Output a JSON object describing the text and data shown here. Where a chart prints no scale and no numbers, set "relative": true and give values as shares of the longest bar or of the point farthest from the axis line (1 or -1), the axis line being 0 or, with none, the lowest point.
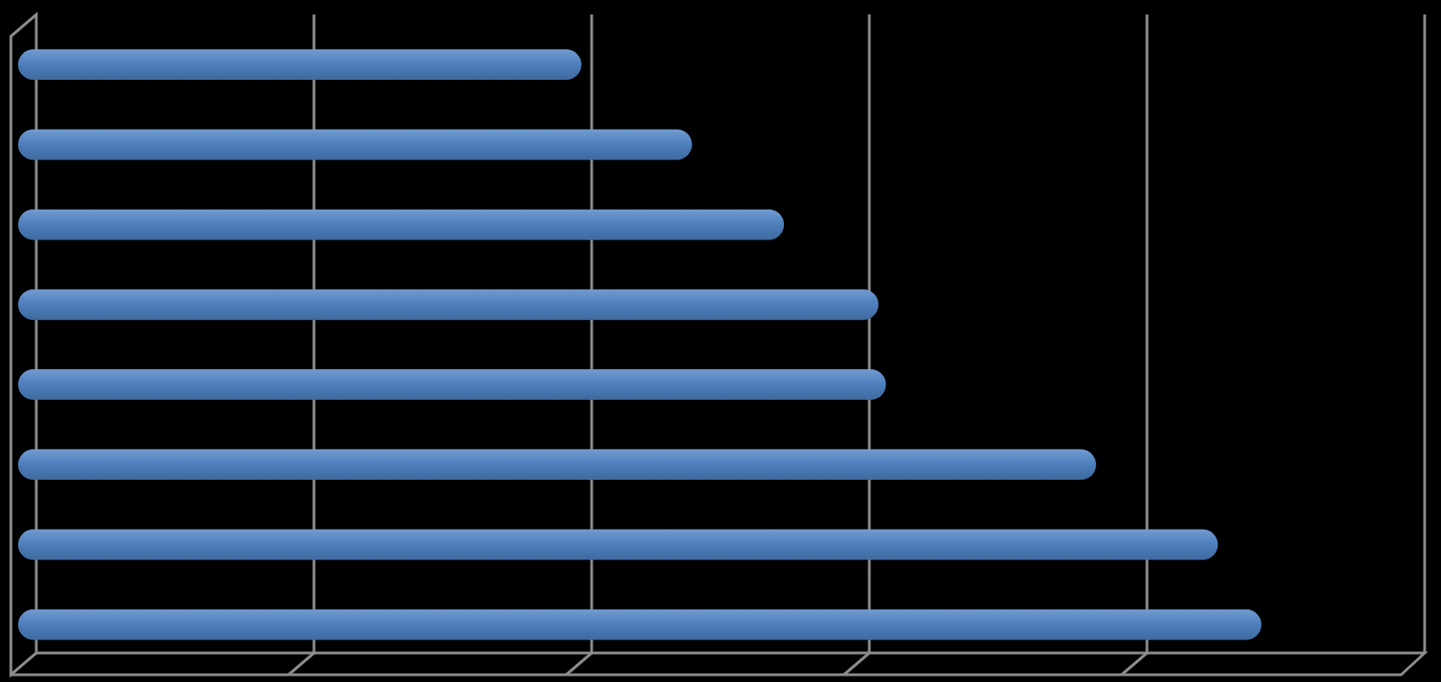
{
  "chart_data": {
    "type": "bar",
    "orientation": "horizontal",
    "relative": true,
    "grid": "x",
    "color": "#4f81bd",
    "categories": [
      null,
      null,
      null,
      null,
      null,
      null,
      null,
      null
    ],
    "values": [
      0.453,
      0.542,
      0.616,
      0.692,
      0.698,
      0.867,
      0.965,
      1
    ]
  }
}
